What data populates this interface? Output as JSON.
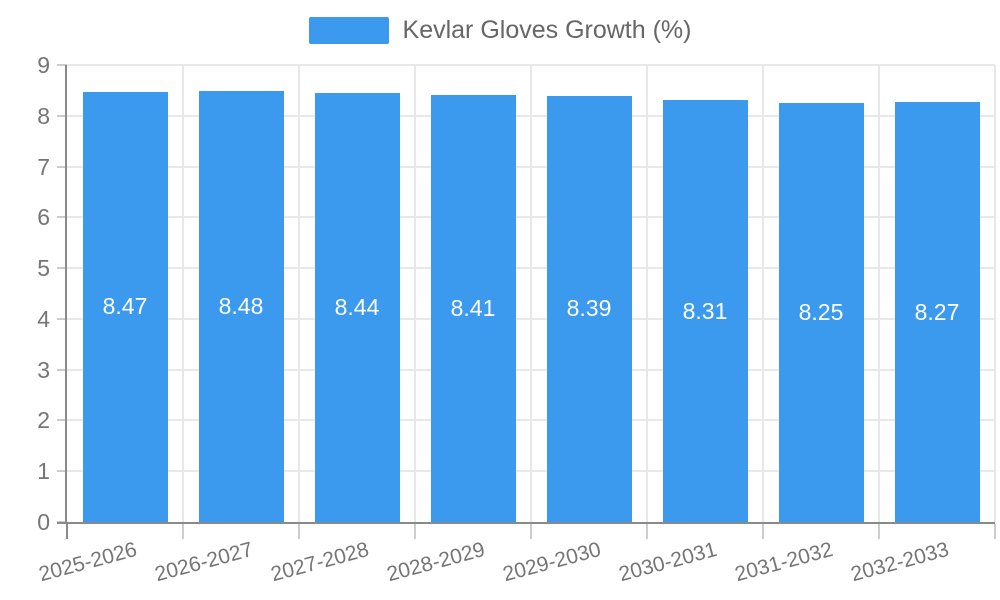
{
  "chart_data": {
    "type": "bar",
    "title": "",
    "legend_label": "Kevlar Gloves Growth (%)",
    "legend_position": "top",
    "categories": [
      "2025-2026",
      "2026-2027",
      "2027-2028",
      "2028-2029",
      "2029-2030",
      "2030-2031",
      "2031-2032",
      "2032-2033"
    ],
    "values": [
      8.47,
      8.48,
      8.44,
      8.41,
      8.39,
      8.31,
      8.25,
      8.27
    ],
    "value_labels": [
      "8.47",
      "8.48",
      "8.44",
      "8.41",
      "8.39",
      "8.31",
      "8.25",
      "8.27"
    ],
    "xlabel": "",
    "ylabel": "",
    "ylim": [
      0,
      9
    ],
    "yticks": [
      0,
      1,
      2,
      3,
      4,
      5,
      6,
      7,
      8,
      9
    ],
    "grid": true,
    "colors": {
      "bar": "#3b99ee",
      "value_label": "#ffffff",
      "axis": "#8a8a8a",
      "grid": "#e8e8e8",
      "tick": "#cccccc",
      "axis_text": "#757575",
      "legend_text": "#666666",
      "background": "#ffffff"
    }
  }
}
